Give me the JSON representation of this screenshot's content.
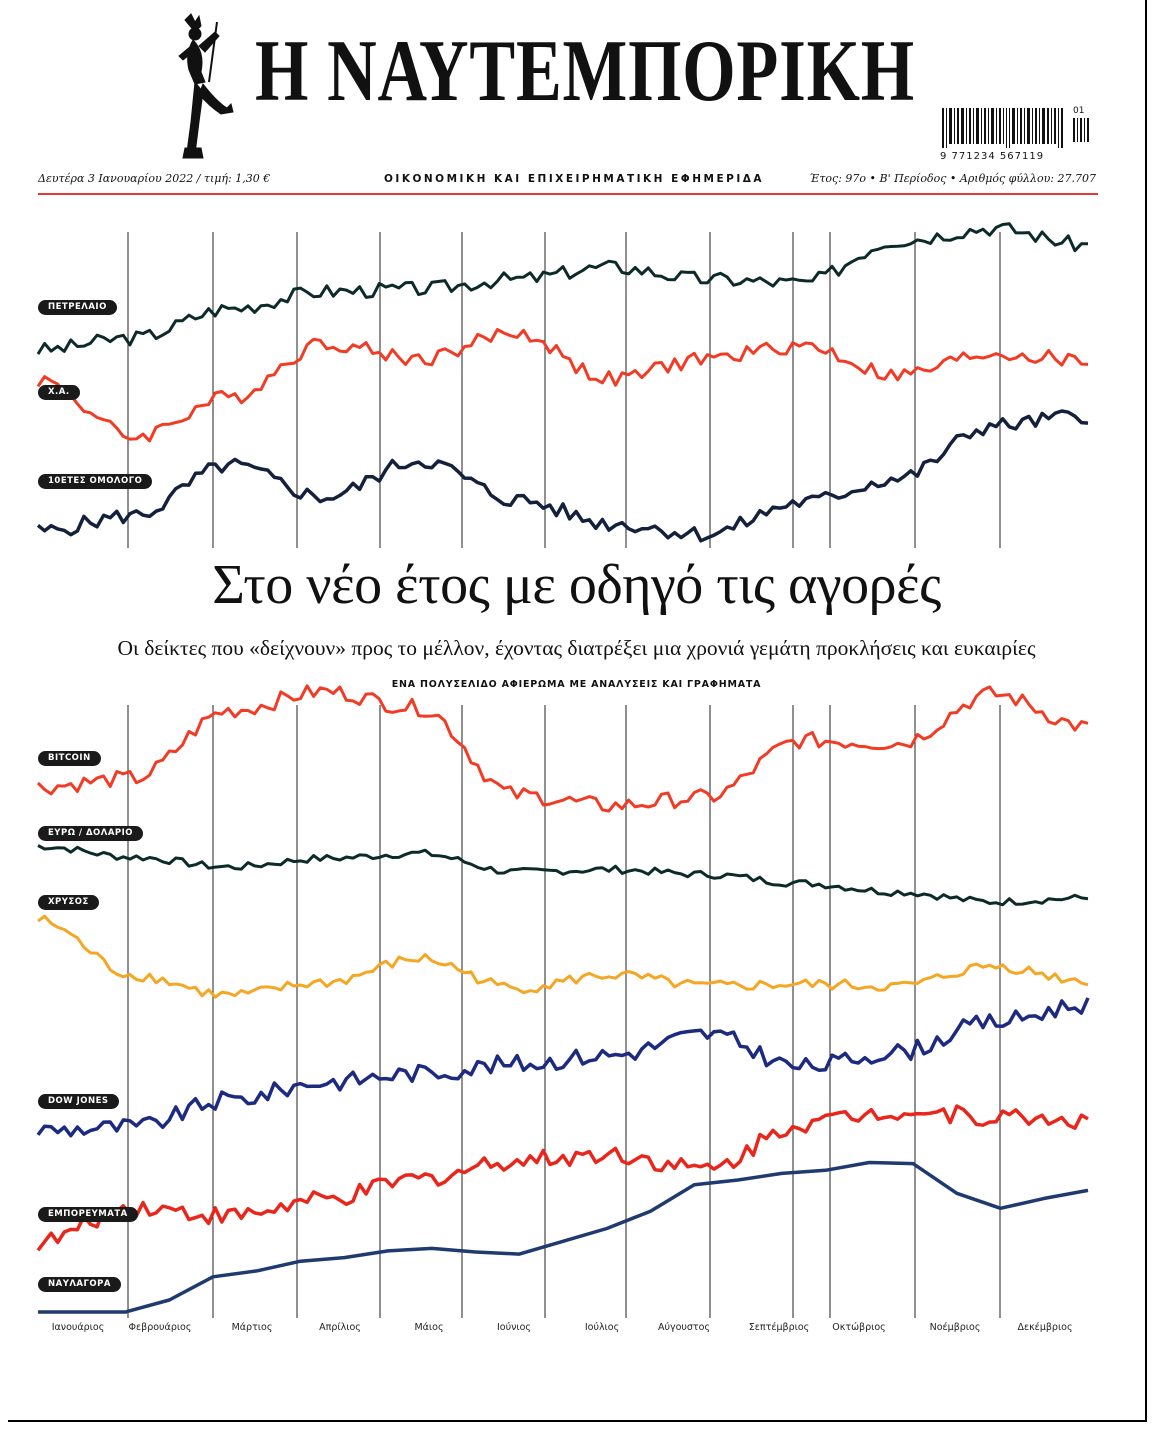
{
  "masthead": {
    "title": "Η ΝΑΥΤΕΜΠΟΡΙΚΗ",
    "logo_icon": "hermes-figure-icon",
    "date_price": "Δευτέρα 3 Ιανουαρίου 2022 / τιμή: 1,30 €",
    "tagline": "ΟΙΚΟΝΟΜΙΚΗ ΚΑΙ ΕΠΙΧΕΙΡΗΜΑΤΙΚΗ ΕΦΗΜΕΡΙΔΑ",
    "issue_info": "Έτος: 97ο • Β' Περίοδος • Αριθμός φύλλου: 27.707",
    "barcode_number": "9  771234  567119",
    "barcode_issue": "01",
    "accent_color": "#e53935"
  },
  "headline": {
    "title": "Στο νέο έτος με οδηγό τις αγορές",
    "subtitle": "Οι δείκτες που «δείχνουν» προς το μέλλον, έχοντας διατρέξει μια χρονιά γεμάτη προκλήσεις και ευκαιρίες",
    "kicker": "ΕΝΑ ΠΟΛΥΣΕΛΙΔΟ ΑΦΙΕΡΩΜΑ ΜΕ ΑΝΑΛΥΣΕΙΣ ΚΑΙ ΓΡΑΦΗΜΑΤΑ"
  },
  "chart_labels": {
    "oil": "ΠΕΤΡΕΛΑΙΟ",
    "ase": "Χ.Α.",
    "bond": "10ΕΤΕΣ ΟΜΟΛΟΓΟ",
    "bitcoin": "BITCOIN",
    "eurusd": "ΕΥΡΩ / ΔΟΛΑΡΙΟ",
    "gold": "ΧΡΥΣΟΣ",
    "dow": "DOW JONES",
    "commodities": "ΕΜΠΟΡΕΥΜΑΤΑ",
    "freight": "ΝΑΥΛΑΓΟΡΑ"
  },
  "months": [
    "Ιανουάριος",
    "Φεβρουάριος",
    "Μάρτιος",
    "Απρίλιος",
    "Μάιος",
    "Ιούνιος",
    "Ιούλιος",
    "Αύγουστος",
    "Σεπτέμβριος",
    "Οκτώβριος",
    "Νοέμβριος",
    "Δεκέμβριος"
  ],
  "chart_data": {
    "type": "line",
    "x": [
      "Ιανουάριος",
      "Φεβρουάριος",
      "Μάρτιος",
      "Απρίλιος",
      "Μάιος",
      "Ιούνιος",
      "Ιούλιος",
      "Αύγουστος",
      "Σεπτέμβριος",
      "Οκτώβριος",
      "Νοέμβριος",
      "Δεκέμβριος"
    ],
    "grid": true,
    "series": [
      {
        "name": "ΠΕΤΡΕΛΑΙΟ",
        "color": "#0d2a2a",
        "values": [
          0.0,
          0.1,
          0.34,
          0.48,
          0.5,
          0.58,
          0.68,
          0.58,
          0.55,
          0.9,
          1.0,
          0.86
        ]
      },
      {
        "name": "Χ.Α.",
        "color": "#f23b25",
        "values": [
          0.62,
          0.18,
          0.48,
          0.9,
          0.78,
          0.98,
          0.62,
          0.78,
          0.88,
          0.65,
          0.82,
          0.76
        ]
      },
      {
        "name": "10ΕΤΕΣ ΟΜΟΛΟΓΟ",
        "color": "#14213d",
        "values": [
          0.08,
          0.2,
          0.58,
          0.34,
          0.62,
          0.32,
          0.14,
          0.06,
          0.3,
          0.48,
          0.88,
          0.96
        ]
      },
      {
        "name": "BITCOIN",
        "color": "#f23b25",
        "values": [
          0.26,
          0.32,
          0.82,
          0.96,
          0.84,
          0.2,
          0.12,
          0.18,
          0.6,
          0.58,
          0.94,
          0.7
        ]
      },
      {
        "name": "ΕΥΡΩ / ΔΟΛΑΡΙΟ",
        "color": "#0d2a2a",
        "values": [
          1.0,
          0.82,
          0.66,
          0.8,
          0.88,
          0.58,
          0.62,
          0.54,
          0.4,
          0.26,
          0.1,
          0.16
        ]
      },
      {
        "name": "ΧΡΥΣΟΣ",
        "color": "#f5a623",
        "values": [
          1.0,
          0.4,
          0.18,
          0.32,
          0.58,
          0.26,
          0.4,
          0.28,
          0.3,
          0.28,
          0.5,
          0.34
        ]
      },
      {
        "name": "DOW JONES",
        "color": "#1c2a80",
        "values": [
          0.1,
          0.12,
          0.3,
          0.42,
          0.48,
          0.54,
          0.6,
          0.74,
          0.52,
          0.62,
          0.82,
          0.94
        ]
      },
      {
        "name": "ΕΜΠΟΡΕΥΜΑΤΑ",
        "color": "#e8261c",
        "values": [
          0.05,
          0.28,
          0.22,
          0.32,
          0.46,
          0.58,
          0.62,
          0.52,
          0.82,
          0.9,
          0.86,
          0.84
        ]
      },
      {
        "name": "ΝΑΥΛΑΓΟΡΑ",
        "color": "#1f3a6e",
        "values": [
          0.0,
          0.0,
          0.25,
          0.35,
          0.42,
          0.38,
          0.55,
          0.85,
          0.92,
          1.0,
          0.68,
          0.8
        ]
      }
    ]
  }
}
